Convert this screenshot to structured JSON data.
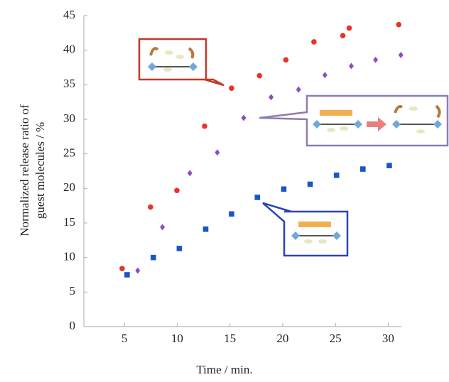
{
  "chart_data": {
    "type": "scatter",
    "xlabel": "Time / min.",
    "ylabel": [
      "Normalized release ratio of",
      "guest molecules / %"
    ],
    "xlim": [
      1.15,
      31.25
    ],
    "ylim": [
      0,
      45
    ],
    "xticks": [
      5,
      10,
      15,
      20,
      25,
      30
    ],
    "yticks": [
      0,
      5,
      10,
      15,
      20,
      25,
      30,
      35,
      40,
      45
    ],
    "series": [
      {
        "color": "#e8332a",
        "marker": "circle",
        "x": [
          4.78,
          7.47,
          9.97,
          12.6,
          15.15,
          17.8,
          20.3,
          22.96,
          25.7,
          26.3,
          31.0
        ],
        "values": [
          8.4,
          17.3,
          19.7,
          29.0,
          34.5,
          36.3,
          38.6,
          41.2,
          42.1,
          43.2,
          43.7
        ]
      },
      {
        "color": "#8a4fc0",
        "marker": "diamond",
        "x": [
          6.26,
          8.6,
          11.2,
          13.8,
          16.3,
          18.9,
          21.5,
          24.0,
          26.5,
          28.8,
          31.2
        ],
        "values": [
          8.1,
          14.4,
          22.2,
          25.2,
          30.2,
          33.2,
          34.3,
          36.4,
          37.7,
          38.6,
          39.3
        ]
      },
      {
        "color": "#1a56c8",
        "marker": "square",
        "x": [
          5.25,
          7.74,
          10.2,
          12.7,
          15.15,
          17.6,
          20.1,
          22.6,
          25.1,
          27.6,
          30.1
        ],
        "values": [
          7.5,
          10.0,
          11.3,
          14.1,
          16.3,
          18.7,
          19.9,
          20.6,
          21.9,
          22.8,
          23.3
        ]
      }
    ]
  }
}
